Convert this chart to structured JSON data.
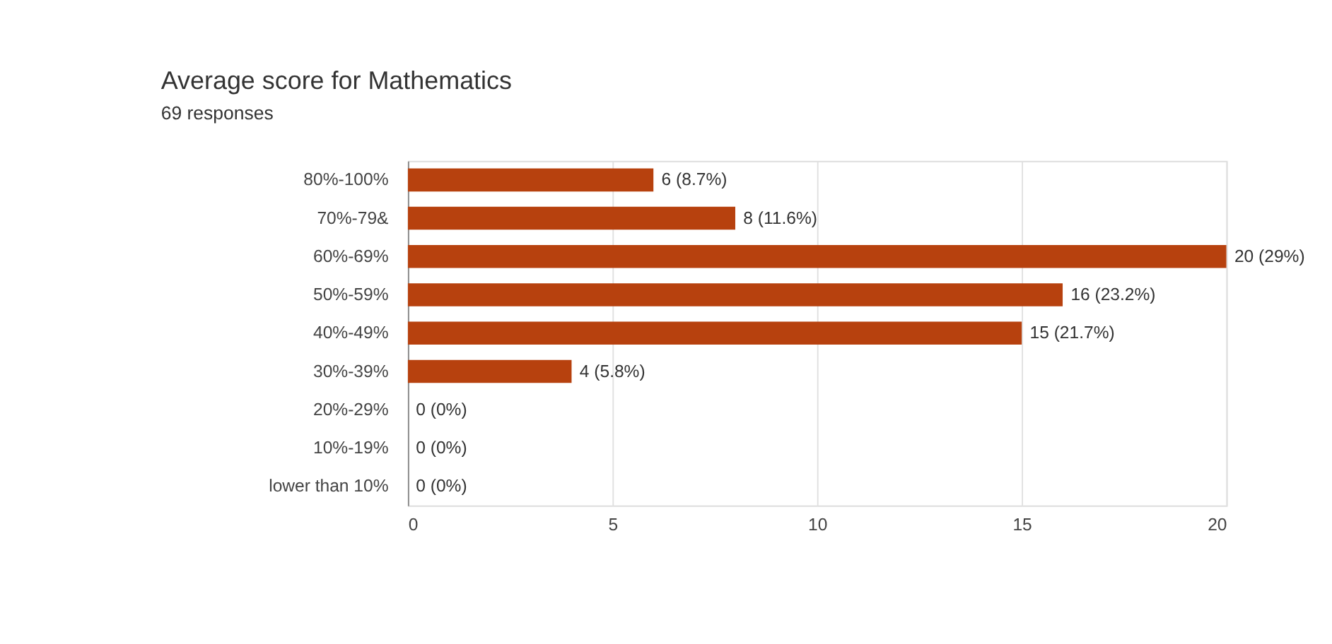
{
  "chart_data": {
    "type": "bar",
    "orientation": "horizontal",
    "title": "Average score for Mathematics",
    "subtitle": "69 responses",
    "categories": [
      "80%-100%",
      "70%-79&",
      "60%-69%",
      "50%-59%",
      "40%-49%",
      "30%-39%",
      "20%-29%",
      "10%-19%",
      "lower than 10%"
    ],
    "values": [
      6,
      8,
      20,
      16,
      15,
      4,
      0,
      0,
      0
    ],
    "value_labels": [
      "6 (8.7%)",
      "8 (11.6%)",
      "20 (29%)",
      "16 (23.2%)",
      "15 (21.7%)",
      "4 (5.8%)",
      "0 (0%)",
      "0 (0%)",
      "0 (0%)"
    ],
    "color": "#b7410e",
    "xlim": [
      0,
      20
    ],
    "xticks": [
      0,
      5,
      10,
      15,
      20
    ],
    "grid": "x"
  }
}
